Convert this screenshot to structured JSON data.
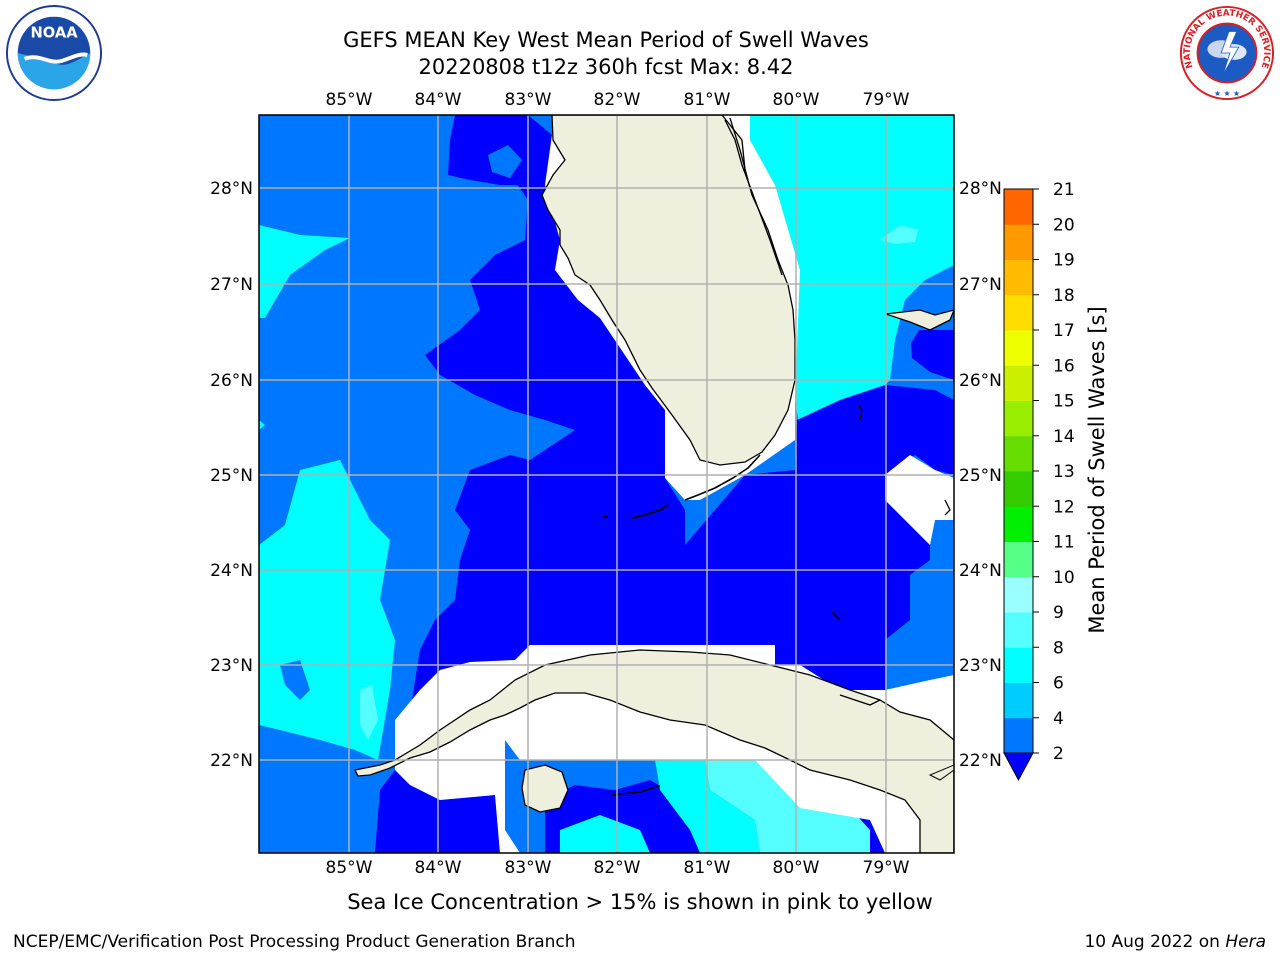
{
  "header": {
    "title_line1": "GEFS MEAN Key West Mean Period of Swell Waves",
    "title_line2": "20220808 t12z 360h fcst   Max: 8.42"
  },
  "logos": {
    "left": "noaa-logo",
    "right": "nws-logo"
  },
  "map": {
    "lon_labels": [
      "85°W",
      "84°W",
      "83°W",
      "82°W",
      "81°W",
      "80°W",
      "79°W"
    ],
    "lat_labels": [
      "28°N",
      "27°N",
      "26°N",
      "25°N",
      "24°N",
      "23°N",
      "22°N"
    ],
    "colors": {
      "ocean_deep": "#0000ff",
      "ocean_blue": "#0077ff",
      "ocean_cyan": "#00ffff",
      "ocean_aqua": "#55ffff",
      "land": "#efefdd",
      "gridline": "#b0b0b0"
    }
  },
  "colorbar": {
    "label": "Mean Period of Swell Waves [s]",
    "ticks": [
      "2",
      "4",
      "6",
      "8",
      "9",
      "10",
      "11",
      "12",
      "13",
      "14",
      "15",
      "16",
      "17",
      "18",
      "19",
      "20",
      "21"
    ],
    "colors": [
      "#0077ff",
      "#00ccff",
      "#00ffff",
      "#55ffff",
      "#99ffff",
      "#55ff88",
      "#00ee00",
      "#33cc00",
      "#66dd00",
      "#99ee00",
      "#ccee00",
      "#eeff00",
      "#ffdd00",
      "#ffbb00",
      "#ff9900",
      "#ff6600",
      "#ff3300",
      "#ff0000"
    ],
    "underflow_color": "#0000ff"
  },
  "note": "Sea Ice Concentration > 15% is shown in pink to yellow",
  "footer": {
    "left": "NCEP/EMC/Verification Post Processing Product Generation Branch",
    "right_date": "10 Aug 2022 on ",
    "right_host": "Hera"
  }
}
